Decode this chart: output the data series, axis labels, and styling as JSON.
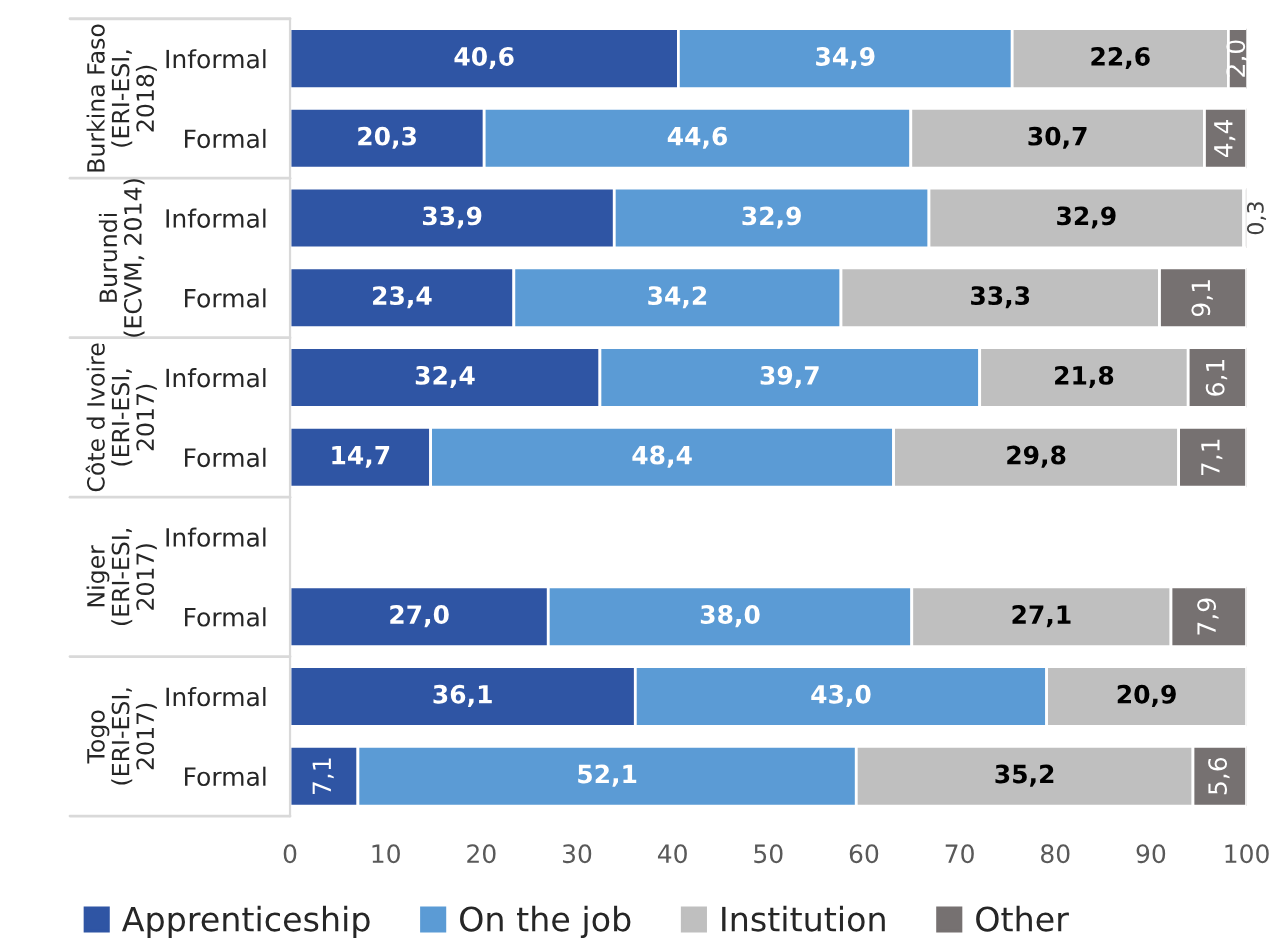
{
  "chart_data": {
    "type": "bar",
    "orientation": "horizontal",
    "stacked": true,
    "categories": [
      "Informal",
      "Formal",
      "Informal",
      "Formal",
      "Informal",
      "Formal",
      "Informal",
      "Formal",
      "Informal",
      "Formal"
    ],
    "annotations": [
      "Burkina Faso (ERI-ESI, 2018)",
      "Burundi (ECVM, 2014)",
      "Côte d Ivoire (ERI-ESI, 2017)",
      "Niger (ERI-ESI, 2017)",
      "Togo (ERI-ESI, 2017)"
    ],
    "series": [
      {
        "name": "Apprenticeship",
        "color": "#2f55a4",
        "values": [
          40.6,
          20.3,
          33.9,
          23.4,
          32.4,
          14.7,
          null,
          27.0,
          36.1,
          7.1
        ],
        "value_labels": [
          "40,6",
          "20,3",
          "33,9",
          "23,4",
          "32,4",
          "14,7",
          null,
          "27,0",
          "36,1",
          "7,1"
        ]
      },
      {
        "name": "On the job",
        "color": "#5b9bd5",
        "values": [
          34.9,
          44.6,
          32.9,
          34.2,
          39.7,
          48.4,
          null,
          38.0,
          43.0,
          52.1
        ],
        "value_labels": [
          "34,9",
          "44,6",
          "32,9",
          "34,2",
          "39,7",
          "48,4",
          null,
          "38,0",
          "43,0",
          "52,1"
        ]
      },
      {
        "name": "Institution",
        "color": "#bfbfbf",
        "values": [
          22.6,
          30.7,
          32.9,
          33.3,
          21.8,
          29.8,
          null,
          27.1,
          20.9,
          35.2
        ],
        "value_labels": [
          "22,6",
          "30,7",
          "32,9",
          "33,3",
          "21,8",
          "29,8",
          null,
          "27,1",
          "20,9",
          "35,2"
        ]
      },
      {
        "name": "Other",
        "color": "#767171",
        "values": [
          2.0,
          4.4,
          0.3,
          9.1,
          6.1,
          7.1,
          null,
          7.9,
          null,
          5.6
        ],
        "value_labels": [
          "2,0",
          "4,4",
          "0,3",
          "9,1",
          "6,1",
          "7,1",
          null,
          "7,9",
          null,
          "5,6"
        ]
      }
    ],
    "xlim": [
      0,
      100
    ],
    "xticks": [
      0,
      10,
      20,
      30,
      40,
      50,
      60,
      70,
      80,
      90,
      100
    ],
    "legend": "bottom",
    "grid": false
  }
}
